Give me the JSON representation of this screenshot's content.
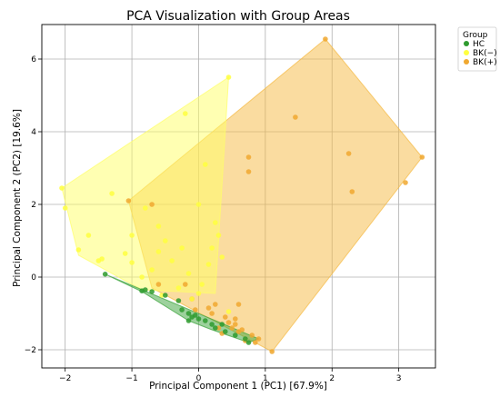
{
  "chart_data": {
    "type": "scatter",
    "title": "PCA Visualization with Group Areas",
    "xlabel": "Principal Component 1 (PC1) [67.9%]",
    "ylabel": "Principal Component 2 (PC2) [19.6%]",
    "xlim": [
      -2.35,
      3.55
    ],
    "ylim": [
      -2.5,
      6.95
    ],
    "xticks": [
      -2,
      -1,
      0,
      1,
      2,
      3
    ],
    "yticks": [
      -2,
      0,
      2,
      4,
      6
    ],
    "grid": true,
    "legend": {
      "title": "Group",
      "placement": "upper right outside"
    },
    "series": [
      {
        "name": "BK(+)",
        "color": "#f0a830",
        "fill": "#f5b942",
        "hull": [
          [
            -1.05,
            2.1
          ],
          [
            1.9,
            6.55
          ],
          [
            3.35,
            3.3
          ],
          [
            1.1,
            -2.05
          ],
          [
            -0.7,
            -0.3
          ]
        ],
        "points": [
          [
            -1.05,
            2.1
          ],
          [
            1.9,
            6.55
          ],
          [
            1.45,
            4.4
          ],
          [
            2.25,
            3.4
          ],
          [
            2.3,
            2.35
          ],
          [
            3.1,
            2.6
          ],
          [
            3.35,
            3.3
          ],
          [
            0.75,
            3.3
          ],
          [
            0.75,
            2.9
          ],
          [
            -0.7,
            2.0
          ],
          [
            1.1,
            -2.05
          ],
          [
            0.6,
            -0.75
          ],
          [
            -0.6,
            -0.2
          ],
          [
            -0.1,
            -0.6
          ],
          [
            0.2,
            -1.0
          ],
          [
            0.3,
            -1.4
          ],
          [
            0.45,
            -1.25
          ],
          [
            0.55,
            -1.3
          ],
          [
            0.6,
            -1.5
          ],
          [
            0.7,
            -1.75
          ],
          [
            0.8,
            -1.6
          ],
          [
            0.85,
            -1.8
          ],
          [
            0.35,
            -1.55
          ],
          [
            0.5,
            -1.4
          ],
          [
            0.25,
            -0.75
          ],
          [
            -0.05,
            -0.9
          ],
          [
            0.4,
            -1.1
          ],
          [
            0.55,
            -1.15
          ],
          [
            0.65,
            -1.45
          ],
          [
            0.15,
            -0.85
          ],
          [
            -0.2,
            -0.2
          ],
          [
            0.9,
            -1.7
          ]
        ]
      },
      {
        "name": "BK(−)",
        "color": "#ffff40",
        "fill": "#ffff66",
        "hull": [
          [
            -2.05,
            2.45
          ],
          [
            0.45,
            5.5
          ],
          [
            0.25,
            -0.45
          ],
          [
            -0.85,
            -0.35
          ],
          [
            -1.8,
            0.6
          ]
        ],
        "points": [
          [
            -2.05,
            2.45
          ],
          [
            -2.0,
            1.9
          ],
          [
            -1.8,
            0.75
          ],
          [
            -1.65,
            1.15
          ],
          [
            -1.5,
            0.45
          ],
          [
            -1.45,
            0.5
          ],
          [
            -1.3,
            2.3
          ],
          [
            -1.1,
            0.65
          ],
          [
            -1.0,
            1.15
          ],
          [
            -1.0,
            0.4
          ],
          [
            -0.8,
            1.9
          ],
          [
            -0.85,
            0.0
          ],
          [
            -0.6,
            1.4
          ],
          [
            -0.6,
            0.7
          ],
          [
            -0.5,
            1.0
          ],
          [
            -0.4,
            0.45
          ],
          [
            -0.25,
            0.8
          ],
          [
            -0.3,
            -0.3
          ],
          [
            -0.15,
            0.1
          ],
          [
            0.0,
            2.0
          ],
          [
            0.1,
            3.1
          ],
          [
            0.25,
            1.5
          ],
          [
            0.3,
            1.15
          ],
          [
            0.45,
            5.5
          ],
          [
            -0.1,
            -0.6
          ],
          [
            0.05,
            -0.2
          ],
          [
            0.2,
            0.8
          ],
          [
            -0.7,
            0.2
          ],
          [
            -0.2,
            4.5
          ],
          [
            -0.55,
            -0.5
          ],
          [
            0.45,
            -0.95
          ],
          [
            0.15,
            0.35
          ],
          [
            0.0,
            -0.45
          ],
          [
            0.35,
            0.55
          ]
        ]
      },
      {
        "name": "HC",
        "color": "#2f9b2f",
        "fill": "#3aa33a",
        "hull": [
          [
            -1.4,
            0.08
          ],
          [
            0.9,
            -1.7
          ],
          [
            0.75,
            -1.8
          ],
          [
            0.2,
            -1.45
          ],
          [
            -0.15,
            -1.2
          ],
          [
            -0.85,
            -0.4
          ]
        ],
        "points": [
          [
            -1.4,
            0.08
          ],
          [
            -0.85,
            -0.38
          ],
          [
            -0.8,
            -0.35
          ],
          [
            -0.5,
            -0.5
          ],
          [
            -0.3,
            -0.65
          ],
          [
            -0.25,
            -0.9
          ],
          [
            -0.15,
            -1.0
          ],
          [
            -0.1,
            -1.1
          ],
          [
            -0.05,
            -1.05
          ],
          [
            -0.15,
            -1.2
          ],
          [
            0.0,
            -1.15
          ],
          [
            0.1,
            -1.2
          ],
          [
            0.2,
            -1.3
          ],
          [
            0.25,
            -1.4
          ],
          [
            0.35,
            -1.3
          ],
          [
            0.4,
            -1.5
          ],
          [
            0.55,
            -1.6
          ],
          [
            0.7,
            -1.7
          ],
          [
            0.75,
            -1.8
          ],
          [
            -0.7,
            -0.4
          ]
        ]
      }
    ]
  }
}
